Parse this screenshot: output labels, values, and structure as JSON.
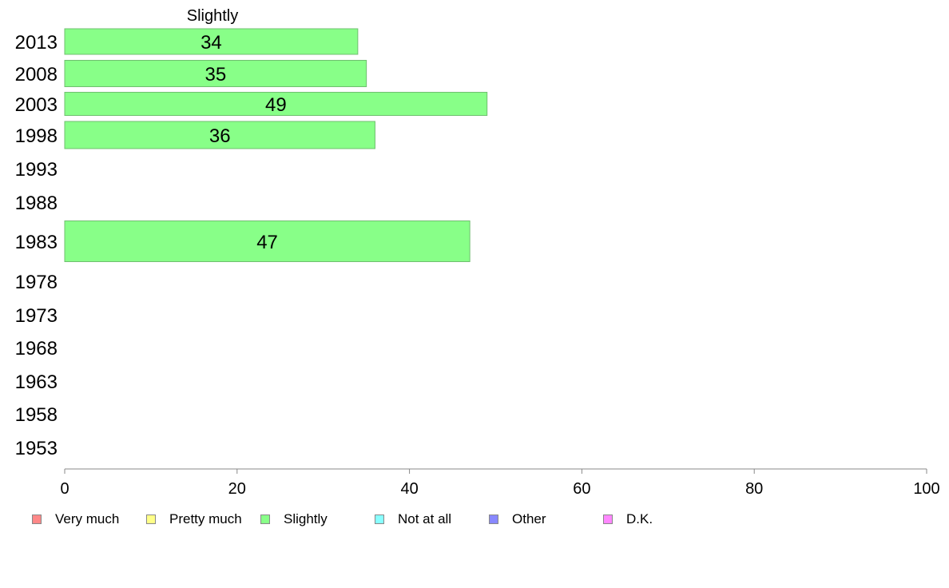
{
  "chart_data": {
    "type": "bar",
    "orientation": "horizontal",
    "title": "Slightly",
    "categories": [
      "2013",
      "2008",
      "2003",
      "1998",
      "1993",
      "1988",
      "1983",
      "1978",
      "1973",
      "1968",
      "1963",
      "1958",
      "1953"
    ],
    "series": [
      {
        "name": "Slightly",
        "color": "#88ff88",
        "values": [
          34,
          35,
          49,
          36,
          null,
          null,
          47,
          null,
          null,
          null,
          null,
          null,
          null
        ]
      }
    ],
    "xlim": [
      0,
      100
    ],
    "xticks": [
      "0",
      "20",
      "40",
      "60",
      "80",
      "100"
    ],
    "grid": false,
    "legend_position": "bottom"
  },
  "legend": {
    "items": [
      {
        "label": "Very much",
        "color": "#ff8888"
      },
      {
        "label": "Pretty much",
        "color": "#ffff88"
      },
      {
        "label": "Slightly",
        "color": "#88ff88"
      },
      {
        "label": "Not at all",
        "color": "#88ffff"
      },
      {
        "label": "Other",
        "color": "#8888ff"
      },
      {
        "label": "D.K.",
        "color": "#ff88ff"
      }
    ]
  }
}
